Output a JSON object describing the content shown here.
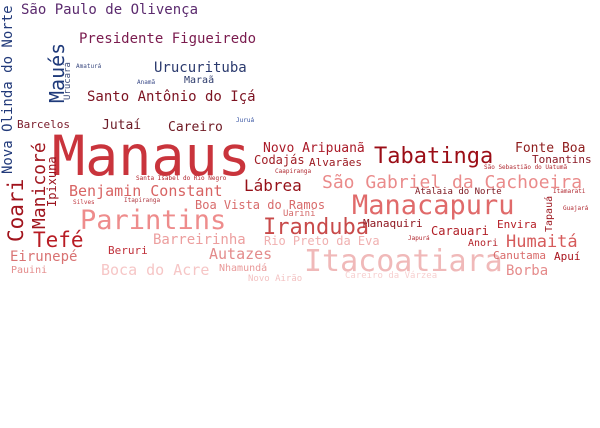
{
  "words": [
    {
      "text": "Manaus",
      "color": "#c9343c"
    },
    {
      "text": "Itacoatiara",
      "color": "#f0b9b9"
    },
    {
      "text": "Manacapuru",
      "color": "#e06a6a"
    },
    {
      "text": "Parintins",
      "color": "#ee8c8c"
    },
    {
      "text": "Iranduba",
      "color": "#c84a4a"
    },
    {
      "text": "Tabatinga",
      "color": "#9b0d16"
    },
    {
      "text": "São Gabriel da Cachoeira",
      "color": "#ea8b8b"
    },
    {
      "text": "Coari",
      "color": "#a1131c"
    },
    {
      "text": "Tefé",
      "color": "#b81c24"
    },
    {
      "text": "Maués",
      "color": "#1f3a7a"
    },
    {
      "text": "Manicoré",
      "color": "#a0161e"
    },
    {
      "text": "Humaitá",
      "color": "#d65b5b"
    },
    {
      "text": "Lábrea",
      "color": "#951018"
    },
    {
      "text": "Benjamin Constant",
      "color": "#d86464"
    },
    {
      "text": "Boca do Acre",
      "color": "#f6c6c6"
    },
    {
      "text": "Autazes",
      "color": "#e38b8b"
    },
    {
      "text": "Barreirinha",
      "color": "#ec9e9e"
    },
    {
      "text": "Borba",
      "color": "#e58b8b"
    },
    {
      "text": "Eirunepé",
      "color": "#d97373"
    },
    {
      "text": "Presidente Figueiredo",
      "color": "#7a1b4e"
    },
    {
      "text": "São Paulo de Olivença",
      "color": "#5b2a6e"
    },
    {
      "text": "Santo Antônio do Içá",
      "color": "#7c1221"
    },
    {
      "text": "Urucurituba",
      "color": "#2b3a6e"
    },
    {
      "text": "Nova Olinda do Norte",
      "color": "#223a7a"
    },
    {
      "text": "Fonte Boa",
      "color": "#8e1c1c"
    },
    {
      "text": "Tonantins",
      "color": "#8a1824"
    },
    {
      "text": "Novo Aripuanã",
      "color": "#aa1a28"
    },
    {
      "text": "Codajás",
      "color": "#a01e26"
    },
    {
      "text": "Alvarães",
      "color": "#9b1a22"
    },
    {
      "text": "Boa Vista do Ramos",
      "color": "#d86b6b"
    },
    {
      "text": "Rio Preto da Eva",
      "color": "#f0b0b0"
    },
    {
      "text": "Jutaí",
      "color": "#6b1a26"
    },
    {
      "text": "Careiro",
      "color": "#6e1822"
    },
    {
      "text": "Barcelos",
      "color": "#7a1b2a"
    },
    {
      "text": "Ipixuna",
      "color": "#9b1620"
    },
    {
      "text": "Carauari",
      "color": "#b01e26"
    },
    {
      "text": "Canutama",
      "color": "#d96a6a"
    },
    {
      "text": "Envira",
      "color": "#b51c24"
    },
    {
      "text": "Manaquiri",
      "color": "#8f1720"
    },
    {
      "text": "Beruri",
      "color": "#c0303a"
    },
    {
      "text": "Anori",
      "color": "#b4232b"
    },
    {
      "text": "Apuí",
      "color": "#a9161f"
    },
    {
      "text": "Tapauá",
      "color": "#9e1a22"
    },
    {
      "text": "Uarini",
      "color": "#d46a6a"
    },
    {
      "text": "Nhamundá",
      "color": "#e99a9a"
    },
    {
      "text": "Pauini",
      "color": "#e48d8d"
    },
    {
      "text": "Novo Airão",
      "color": "#f3c2c2"
    },
    {
      "text": "Careiro da Várzea",
      "color": "#f7d0d0"
    },
    {
      "text": "Atalaia do Norte",
      "color": "#7d1720"
    },
    {
      "text": "Maraã",
      "color": "#2c3a6b"
    },
    {
      "text": "Urucará",
      "color": "#3a4a7a"
    },
    {
      "text": "Amaturá",
      "color": "#3b4a80"
    },
    {
      "text": "Anamã",
      "color": "#3a4a88"
    },
    {
      "text": "Juruá",
      "color": "#3350a0"
    },
    {
      "text": "Caapiranga",
      "color": "#b02830"
    },
    {
      "text": "Santa Isabel do Rio Negro",
      "color": "#b0262e"
    },
    {
      "text": "Silves",
      "color": "#c03a42"
    },
    {
      "text": "Itapiranga",
      "color": "#b03a42"
    },
    {
      "text": "Japurá",
      "color": "#b0242c"
    },
    {
      "text": "São Sebastião do Uatumã",
      "color": "#b02830"
    },
    {
      "text": "Itamarati",
      "color": "#b02830"
    },
    {
      "text": "Guajará",
      "color": "#b02830"
    }
  ]
}
